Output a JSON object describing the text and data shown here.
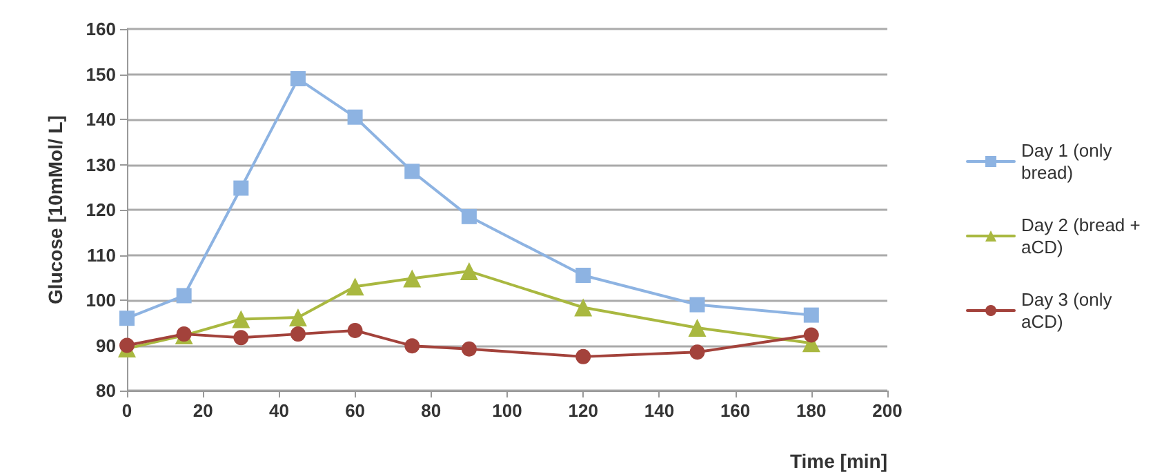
{
  "chart_data": {
    "type": "line",
    "xlabel": "Time [min]",
    "ylabel": "Glucose [10mMol/ L]",
    "x": [
      0,
      15,
      30,
      45,
      60,
      75,
      90,
      120,
      150,
      180
    ],
    "series": [
      {
        "name": "Day 1 (only bread)",
        "color": "#8db3e2",
        "marker": "square",
        "values": [
          96,
          101,
          124.8,
          149,
          140.5,
          128.5,
          118.5,
          105.5,
          99,
          96.7
        ]
      },
      {
        "name": "Day 2 (bread + aCD)",
        "color": "#a9b840",
        "marker": "triangle",
        "values": [
          89.3,
          92.2,
          95.8,
          96.2,
          103,
          104.8,
          106.4,
          98.4,
          93.9,
          90.5
        ]
      },
      {
        "name": "Day 3 (only aCD)",
        "color": "#a3423b",
        "marker": "circle",
        "values": [
          90,
          92.5,
          91.7,
          92.5,
          93.3,
          89.9,
          89.2,
          87.5,
          88.5,
          92.3
        ]
      }
    ],
    "xlim": [
      0,
      200
    ],
    "xticks": [
      0,
      20,
      40,
      60,
      80,
      100,
      120,
      140,
      160,
      180,
      200
    ],
    "ylim": [
      80,
      160
    ],
    "yticks": [
      80,
      90,
      100,
      110,
      120,
      130,
      140,
      150,
      160
    ],
    "grid": "y",
    "legend": "right",
    "line_style": "solid"
  }
}
